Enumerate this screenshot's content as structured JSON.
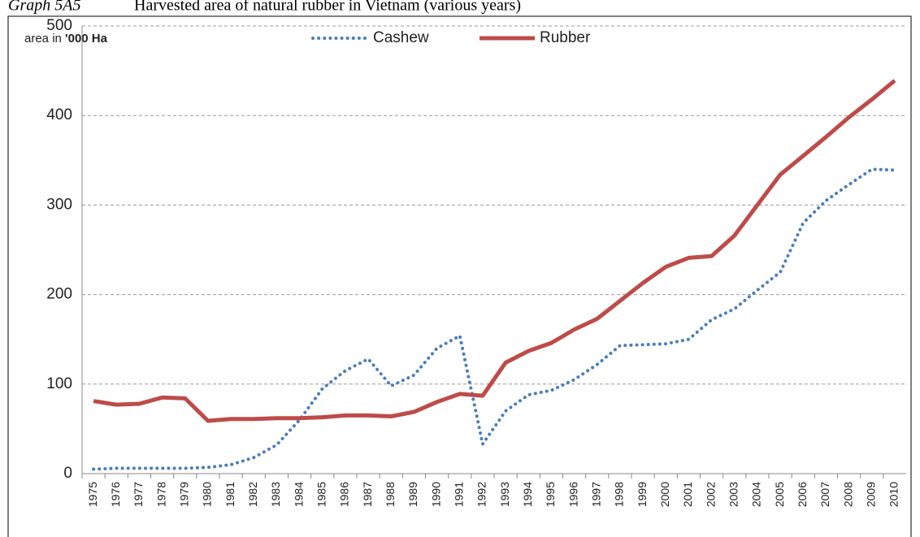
{
  "chart_data": {
    "type": "line",
    "label": "Graph 5A5",
    "title": "Harvested area of natural rubber in Vietnam (various years)",
    "annotation_text": "area in",
    "annotation_unit": "'000 Ha",
    "categories": [
      "1975",
      "1976",
      "1977",
      "1978",
      "1979",
      "1980",
      "1981",
      "1982",
      "1983",
      "1984",
      "1985",
      "1986",
      "1987",
      "1988",
      "1989",
      "1990",
      "1991",
      "1992",
      "1993",
      "1994",
      "1995",
      "1996",
      "1997",
      "1998",
      "1999",
      "2000",
      "2001",
      "2002",
      "2003",
      "2004",
      "2005",
      "2006",
      "2007",
      "2008",
      "2009",
      "2010"
    ],
    "series": [
      {
        "name": "Cashew",
        "color": "#4a7ebb",
        "dashed": true,
        "values": [
          5,
          6,
          6,
          6,
          6,
          7,
          10,
          18,
          32,
          60,
          95,
          115,
          128,
          98,
          110,
          140,
          154,
          33,
          70,
          88,
          93,
          105,
          122,
          143,
          144,
          145,
          150,
          172,
          184,
          205,
          225,
          280,
          305,
          323,
          340,
          339
        ]
      },
      {
        "name": "Rubber",
        "color": "#be4b48",
        "dashed": false,
        "values": [
          81,
          77,
          78,
          85,
          84,
          59,
          61,
          61,
          62,
          62,
          63,
          65,
          65,
          64,
          69,
          80,
          89,
          87,
          124,
          137,
          146,
          161,
          173,
          193,
          213,
          231,
          241,
          243,
          266,
          300,
          334,
          355,
          376,
          398,
          418,
          439
        ]
      }
    ],
    "ylim": [
      0,
      500
    ],
    "yticks": [
      0,
      100,
      200,
      300,
      400,
      500
    ],
    "grid": true
  }
}
